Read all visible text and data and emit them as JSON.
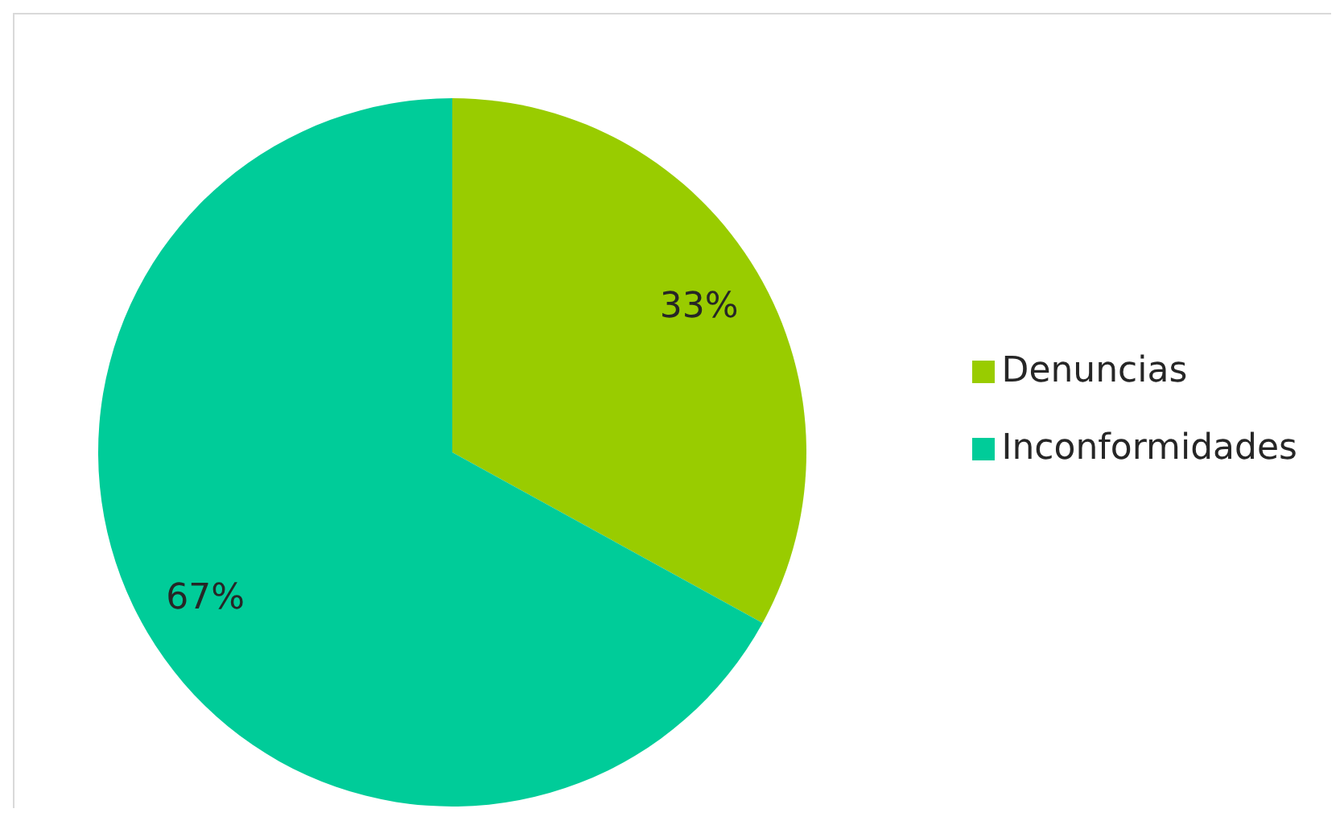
{
  "chart_data": {
    "type": "pie",
    "categories": [
      "Denuncias",
      "Inconformidades"
    ],
    "values": [
      33,
      67
    ],
    "colors": [
      "#99cc00",
      "#00cc99"
    ],
    "value_labels": [
      "33%",
      "67%"
    ],
    "legend": "right"
  }
}
